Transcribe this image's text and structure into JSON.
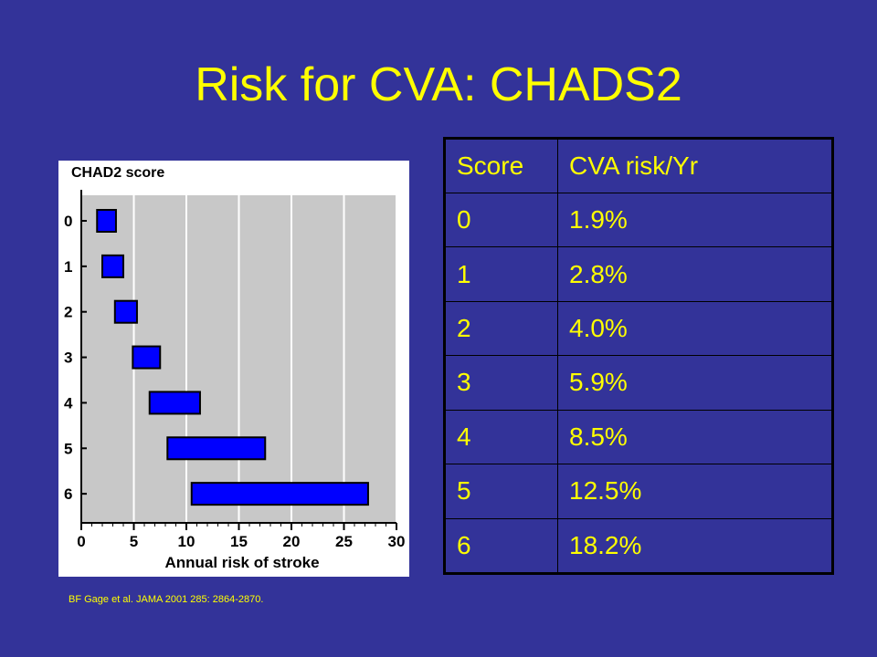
{
  "slide": {
    "title": "Risk for CVA: CHADS2",
    "citation": "BF Gage et al. JAMA 2001 285: 2864-2870.",
    "colors": {
      "background": "#333399",
      "text": "#ffff00",
      "bar": "#0000ff"
    }
  },
  "table": {
    "headers": [
      "Score",
      " CVA risk/Yr"
    ],
    "rows": [
      [
        "0",
        "1.9%"
      ],
      [
        "1",
        "2.8%"
      ],
      [
        "2",
        "4.0%"
      ],
      [
        "3",
        "5.9%"
      ],
      [
        "4",
        "8.5%"
      ],
      [
        "5",
        "12.5%"
      ],
      [
        "6",
        "18.2%"
      ]
    ]
  },
  "chart_data": {
    "type": "bar",
    "title": "CHAD2 score",
    "xlabel": "Annual risk of stroke",
    "ylabel": "",
    "xlim": [
      0,
      30
    ],
    "xticks": [
      0,
      5,
      10,
      15,
      20,
      25,
      30
    ],
    "categories": [
      "0",
      "1",
      "2",
      "3",
      "4",
      "5",
      "6"
    ],
    "intervals": [
      [
        1.5,
        3.3
      ],
      [
        2.0,
        4.0
      ],
      [
        3.2,
        5.3
      ],
      [
        4.9,
        7.5
      ],
      [
        6.5,
        11.3
      ],
      [
        8.2,
        17.5
      ],
      [
        10.5,
        27.3
      ]
    ],
    "grid": true,
    "bar_color": "#0000ff"
  }
}
